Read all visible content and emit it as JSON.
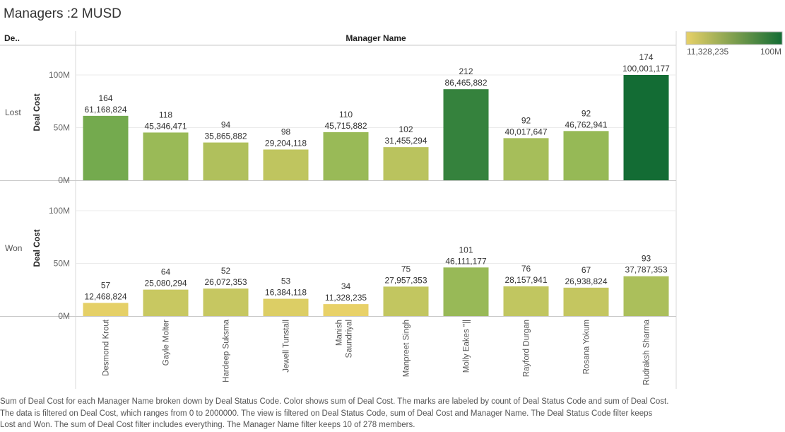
{
  "title": "Managers :2 MUSD",
  "header": {
    "row_header": "De..",
    "column_header": "Manager Name"
  },
  "legend": {
    "min_label": "11,328,235",
    "max_label": "100M",
    "min_value": 11328235,
    "max_value": 100001177,
    "color_low": "#e8d168",
    "color_high": "#136c34"
  },
  "caption": "Sum of Deal Cost for each Manager Name broken down by Deal Status Code.  Color shows sum of Deal Cost.  The marks are labeled by count of Deal Status Code and sum of Deal Cost. The data is filtered on Deal Cost, which ranges from 0 to 2000000. The view is filtered on Deal Status Code, sum of Deal Cost and Manager Name. The Deal Status Code filter keeps Lost and Won. The sum of Deal Cost filter includes everything. The Manager Name filter keeps 10 of 278 members.",
  "chart_data": {
    "type": "bar",
    "title": "Managers :2 MUSD",
    "xlabel": "Manager Name",
    "ylabel": "Deal Cost",
    "categories": [
      "Desmond Krout",
      "Gayle Molter",
      "Hardeep Suksma",
      "Jewell Tunstall",
      "Manish Saundriyal",
      "Manpreet Singh",
      "Molly Eakes \"||",
      "Rayford Durgan",
      "Rosana Yokum",
      "Rudraksh Sharma"
    ],
    "yticks": [
      {
        "value": 0,
        "label": "0M"
      },
      {
        "value": 50000000,
        "label": "50M"
      },
      {
        "value": 100000000,
        "label": "100M"
      }
    ],
    "ylim": [
      0,
      120000000
    ],
    "grid": true,
    "series": [
      {
        "name": "Lost",
        "values": [
          61168824,
          45346471,
          35865882,
          29204118,
          45715882,
          31455294,
          86465882,
          40017647,
          46762941,
          100001177
        ],
        "value_labels": [
          "61,168,824",
          "45,346,471",
          "35,865,882",
          "29,204,118",
          "45,715,882",
          "31,455,294",
          "86,465,882",
          "40,017,647",
          "46,762,941",
          "100,001,177"
        ],
        "counts": [
          "164",
          "118",
          "94",
          "98",
          "110",
          "102",
          "212",
          "92",
          "92",
          "174"
        ]
      },
      {
        "name": "Won",
        "values": [
          12468824,
          25080294,
          26072353,
          16384118,
          11328235,
          27957353,
          46111177,
          28157941,
          26938824,
          37787353
        ],
        "value_labels": [
          "12,468,824",
          "25,080,294",
          "26,072,353",
          "16,384,118",
          "11,328,235",
          "27,957,353",
          "46,111,177",
          "28,157,941",
          "26,938,824",
          "37,787,353"
        ],
        "counts": [
          "57",
          "64",
          "52",
          "53",
          "34",
          "75",
          "101",
          "76",
          "67",
          "93"
        ]
      }
    ]
  }
}
